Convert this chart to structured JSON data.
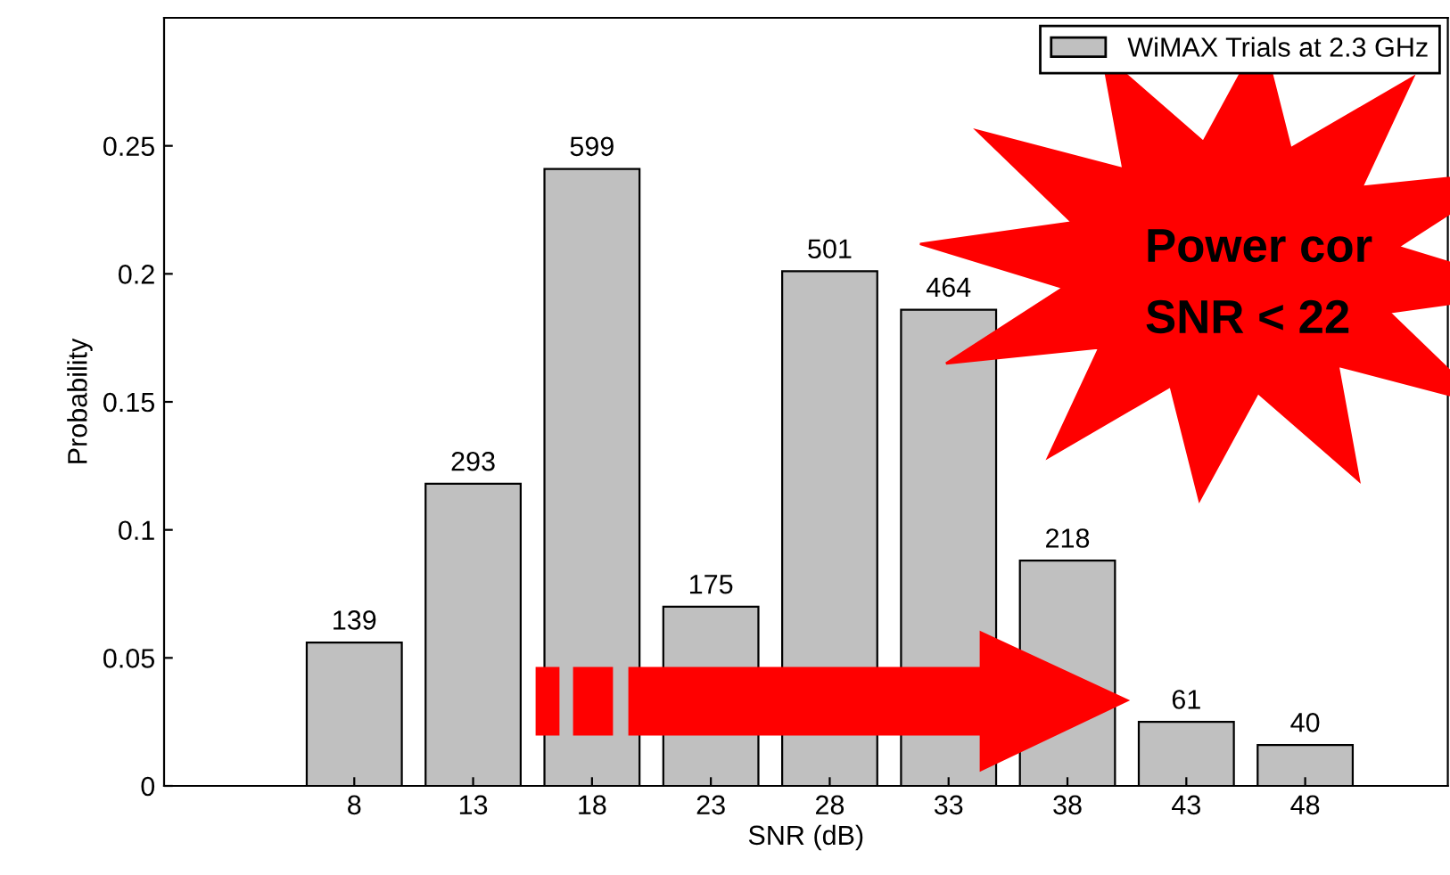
{
  "chart_data": {
    "type": "bar",
    "ylabel": "Probability",
    "xlabel": "SNR (dB)",
    "x": [
      8,
      13,
      18,
      23,
      28,
      33,
      38,
      43,
      48
    ],
    "series": [
      {
        "name": "WiMAX Trials at 2.3 GHz",
        "color": "#c0c0c0",
        "values": [
          0.056,
          0.118,
          0.241,
          0.07,
          0.201,
          0.186,
          0.088,
          0.025,
          0.016
        ]
      }
    ],
    "xlim": [
      0,
      54
    ],
    "xticks": [
      8,
      13,
      18,
      23,
      28,
      33,
      38,
      43,
      48
    ],
    "ylim": [
      0,
      0.3
    ],
    "yticks": [
      0,
      0.05,
      0.1,
      0.15,
      0.2,
      0.25
    ],
    "legend": "top right",
    "grid": false,
    "annotations": [
      "Power cor",
      "SNR < 22",
      {
        "text": "139",
        "x": 8,
        "y": 0.056
      },
      {
        "text": "293",
        "x": 13,
        "y": 0.118
      },
      {
        "text": "599",
        "x": 18,
        "y": 0.241
      },
      {
        "text": "175",
        "x": 23,
        "y": 0.07
      },
      {
        "text": "501",
        "x": 28,
        "y": 0.201
      },
      {
        "text": "464",
        "x": 33,
        "y": 0.186
      },
      {
        "text": "218",
        "x": 38,
        "y": 0.088
      },
      {
        "text": "61",
        "x": 43,
        "y": 0.025
      },
      {
        "text": "40",
        "x": 48,
        "y": 0.016
      }
    ]
  }
}
